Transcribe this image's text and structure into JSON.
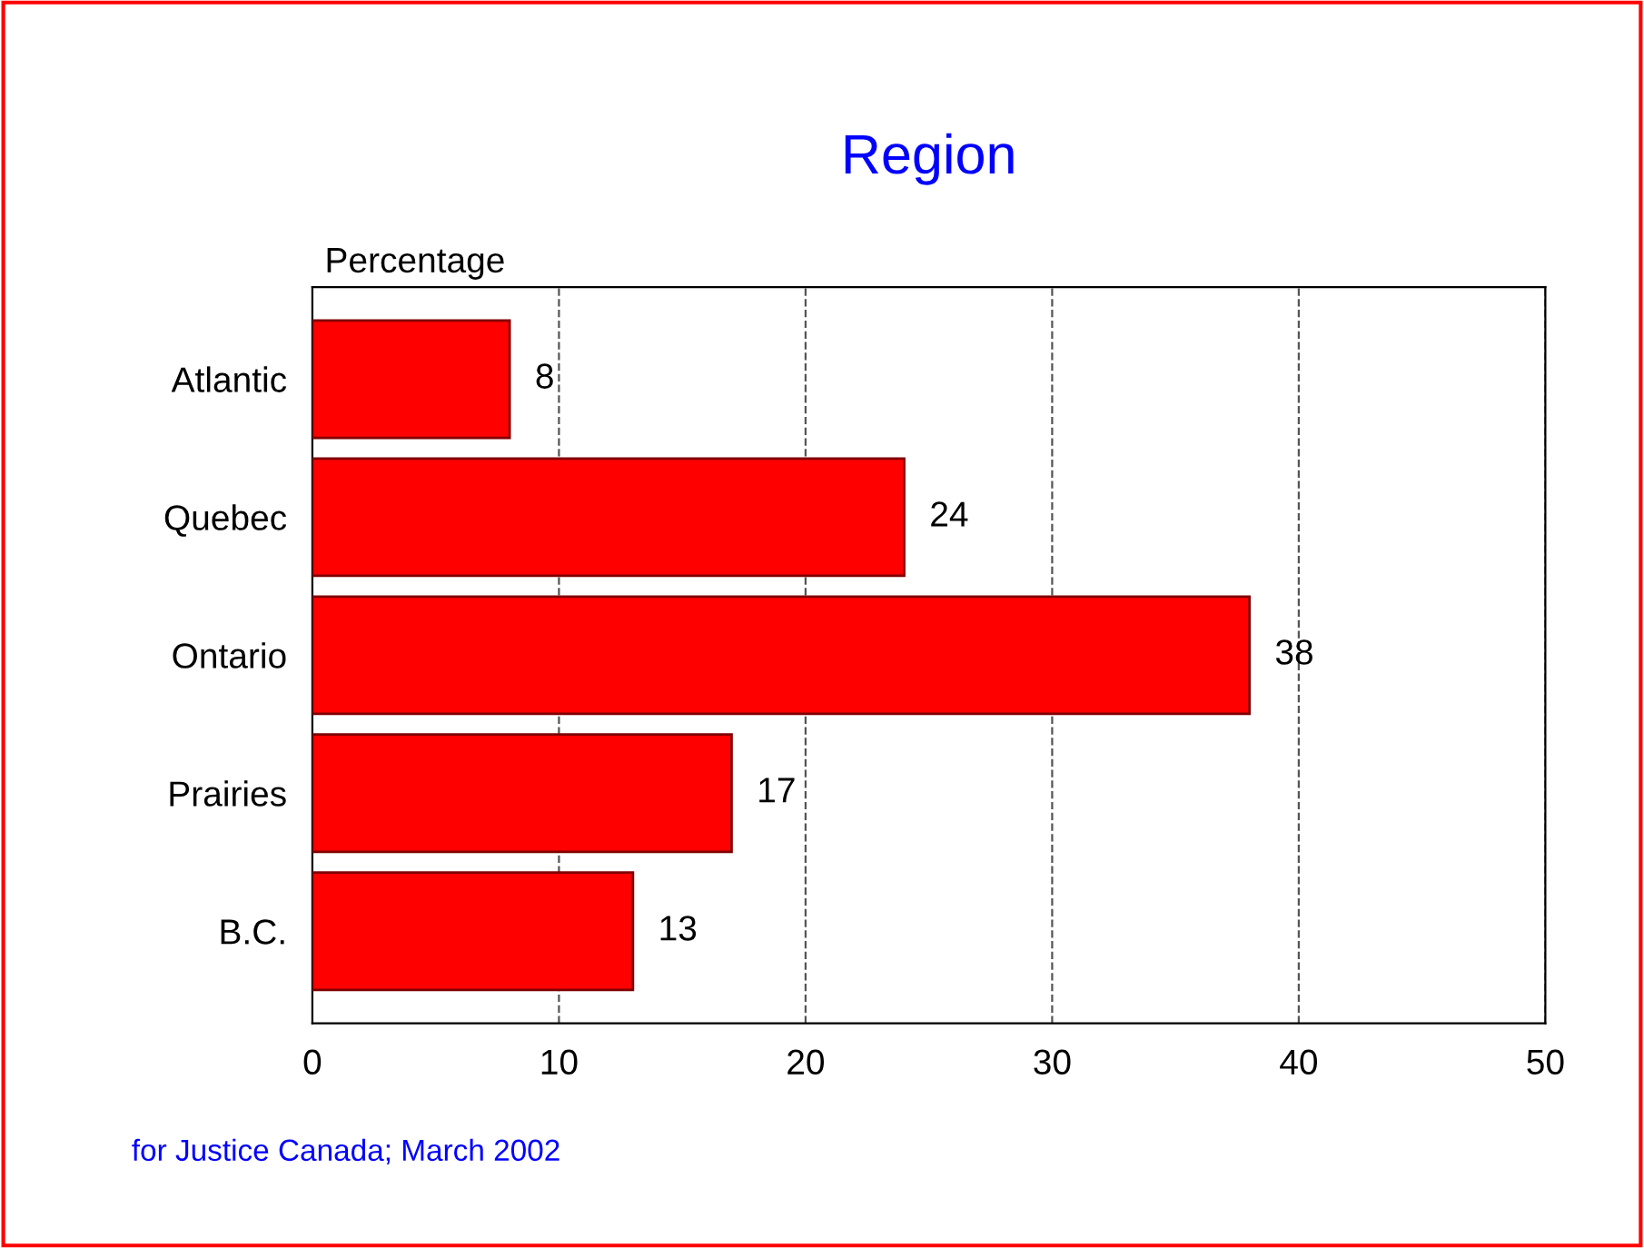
{
  "chart_data": {
    "type": "bar",
    "orientation": "horizontal",
    "title": "Region",
    "xlabel": "Percentage",
    "categories": [
      "Atlantic",
      "Quebec",
      "Ontario",
      "Prairies",
      "B.C."
    ],
    "values": [
      8,
      24,
      38,
      17,
      13
    ],
    "color": "#ff0000",
    "data_labels": true,
    "xlim": [
      0,
      50
    ],
    "xticks": [
      0,
      10,
      20,
      30,
      40,
      50
    ],
    "grid": "x",
    "annotations": [
      "for Justice Canada; March 2002"
    ]
  }
}
